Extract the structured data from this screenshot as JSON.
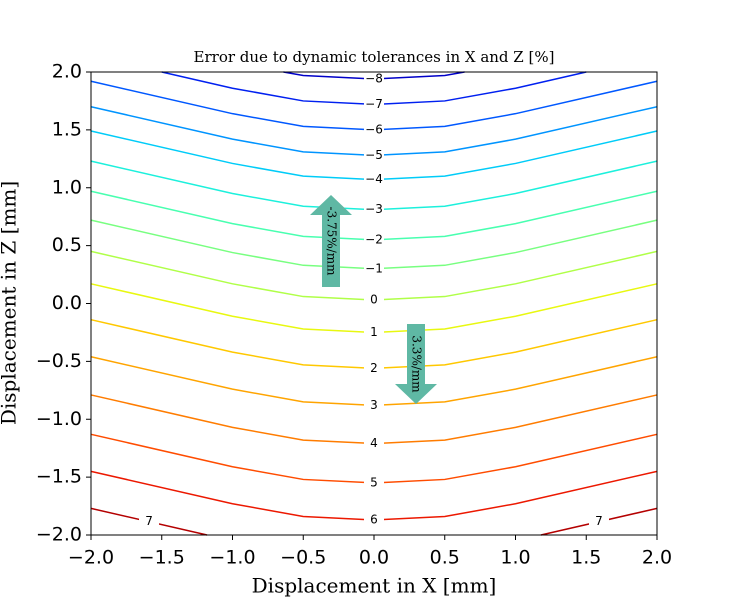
{
  "chart_data": {
    "type": "contour",
    "title": "Error due to dynamic tolerances in X and Z [%]",
    "xlabel": "Displacement in X [mm]",
    "ylabel": "Displacement in Z [mm]",
    "xlim": [
      -2,
      2
    ],
    "ylim": [
      -2,
      2
    ],
    "xticks": [
      {
        "value": -2,
        "label": "−2.0"
      },
      {
        "value": -1.5,
        "label": "−1.5"
      },
      {
        "value": -1,
        "label": "−1.0"
      },
      {
        "value": -0.5,
        "label": "−0.5"
      },
      {
        "value": 0,
        "label": "0.0"
      },
      {
        "value": 0.5,
        "label": "0.5"
      },
      {
        "value": 1,
        "label": "1.0"
      },
      {
        "value": 1.5,
        "label": "1.5"
      },
      {
        "value": 2,
        "label": "2.0"
      }
    ],
    "yticks": [
      {
        "value": -2,
        "label": "−2.0"
      },
      {
        "value": -1.5,
        "label": "−1.5"
      },
      {
        "value": -1,
        "label": "−1.0"
      },
      {
        "value": -0.5,
        "label": "−0.5"
      },
      {
        "value": 0,
        "label": "0.0"
      },
      {
        "value": 0.5,
        "label": "0.5"
      },
      {
        "value": 1,
        "label": "1.0"
      },
      {
        "value": 1.5,
        "label": "1.5"
      },
      {
        "value": 2,
        "label": "2.0"
      }
    ],
    "annotations": [
      "-3.75%/mm",
      "3.3%/mm"
    ],
    "series": [
      {
        "name": "−8",
        "color": "#0000c8",
        "x": [
          -0.64,
          -0.5,
          0,
          0.5,
          0.64
        ],
        "y": [
          2.0,
          1.97,
          1.94,
          1.97,
          2.0
        ]
      },
      {
        "name": "−7",
        "color": "#0020f0",
        "x": [
          -1.5,
          -1,
          -0.5,
          0,
          0.5,
          1,
          1.5
        ],
        "y": [
          2.0,
          1.86,
          1.75,
          1.72,
          1.75,
          1.86,
          2.0
        ]
      },
      {
        "name": "−6",
        "color": "#0058ff",
        "x": [
          -2,
          -1,
          -0.5,
          0,
          0.5,
          1,
          2
        ],
        "y": [
          1.92,
          1.64,
          1.53,
          1.5,
          1.53,
          1.64,
          1.92
        ]
      },
      {
        "name": "−5",
        "color": "#0094ff",
        "x": [
          -2,
          -1,
          -0.5,
          0,
          0.5,
          1,
          2
        ],
        "y": [
          1.7,
          1.42,
          1.31,
          1.28,
          1.31,
          1.42,
          1.7
        ]
      },
      {
        "name": "−4",
        "color": "#00ccf8",
        "x": [
          -2,
          -1,
          -0.5,
          0,
          0.5,
          1,
          2
        ],
        "y": [
          1.49,
          1.21,
          1.1,
          1.07,
          1.1,
          1.21,
          1.49
        ]
      },
      {
        "name": "−3",
        "color": "#1cf0dc",
        "x": [
          -2,
          -1,
          -0.5,
          0,
          0.5,
          1,
          2
        ],
        "y": [
          1.23,
          0.95,
          0.84,
          0.81,
          0.84,
          0.95,
          1.23
        ]
      },
      {
        "name": "−2",
        "color": "#48ffb0",
        "x": [
          -2,
          -1,
          -0.5,
          0,
          0.5,
          1,
          2
        ],
        "y": [
          0.97,
          0.69,
          0.58,
          0.55,
          0.58,
          0.69,
          0.97
        ]
      },
      {
        "name": "−1",
        "color": "#78ff80",
        "x": [
          -2,
          -1,
          -0.5,
          0,
          0.5,
          1,
          2
        ],
        "y": [
          0.72,
          0.44,
          0.33,
          0.3,
          0.33,
          0.44,
          0.72
        ]
      },
      {
        "name": "0",
        "color": "#b0ff48",
        "x": [
          -2,
          -1,
          -0.5,
          0,
          0.5,
          1,
          2
        ],
        "y": [
          0.45,
          0.17,
          0.06,
          0.03,
          0.06,
          0.17,
          0.45
        ]
      },
      {
        "name": "1",
        "color": "#e8f810",
        "x": [
          -2,
          -1,
          -0.5,
          0,
          0.5,
          1,
          2
        ],
        "y": [
          0.17,
          -0.11,
          -0.22,
          -0.25,
          -0.22,
          -0.11,
          0.17
        ]
      },
      {
        "name": "2",
        "color": "#ffc800",
        "x": [
          -2,
          -1,
          -0.5,
          0,
          0.5,
          1,
          2
        ],
        "y": [
          -0.14,
          -0.42,
          -0.53,
          -0.56,
          -0.53,
          -0.42,
          -0.14
        ]
      },
      {
        "name": "3",
        "color": "#ffa400",
        "x": [
          -2,
          -1,
          -0.5,
          0,
          0.5,
          1,
          2
        ],
        "y": [
          -0.46,
          -0.74,
          -0.85,
          -0.88,
          -0.85,
          -0.74,
          -0.46
        ]
      },
      {
        "name": "4",
        "color": "#ff7c00",
        "x": [
          -2,
          -1,
          -0.5,
          0,
          0.5,
          1,
          2
        ],
        "y": [
          -0.79,
          -1.07,
          -1.18,
          -1.21,
          -1.18,
          -1.07,
          -0.79
        ]
      },
      {
        "name": "5",
        "color": "#ff4c00",
        "x": [
          -2,
          -1,
          -0.5,
          0,
          0.5,
          1,
          2
        ],
        "y": [
          -1.13,
          -1.41,
          -1.52,
          -1.55,
          -1.52,
          -1.41,
          -1.13
        ]
      },
      {
        "name": "6",
        "color": "#ec1800",
        "x": [
          -2,
          -1,
          -0.5,
          0,
          0.5,
          1,
          2
        ],
        "y": [
          -1.45,
          -1.73,
          -1.84,
          -1.87,
          -1.84,
          -1.73,
          -1.45
        ]
      },
      {
        "name": "7",
        "color": "#b40000",
        "x": [
          -2,
          -1.18
        ],
        "y": [
          -1.77,
          -2.0
        ]
      },
      {
        "name": "7",
        "color": "#b40000",
        "x": [
          1.18,
          2
        ],
        "y": [
          -2.0,
          -1.77
        ]
      }
    ]
  }
}
